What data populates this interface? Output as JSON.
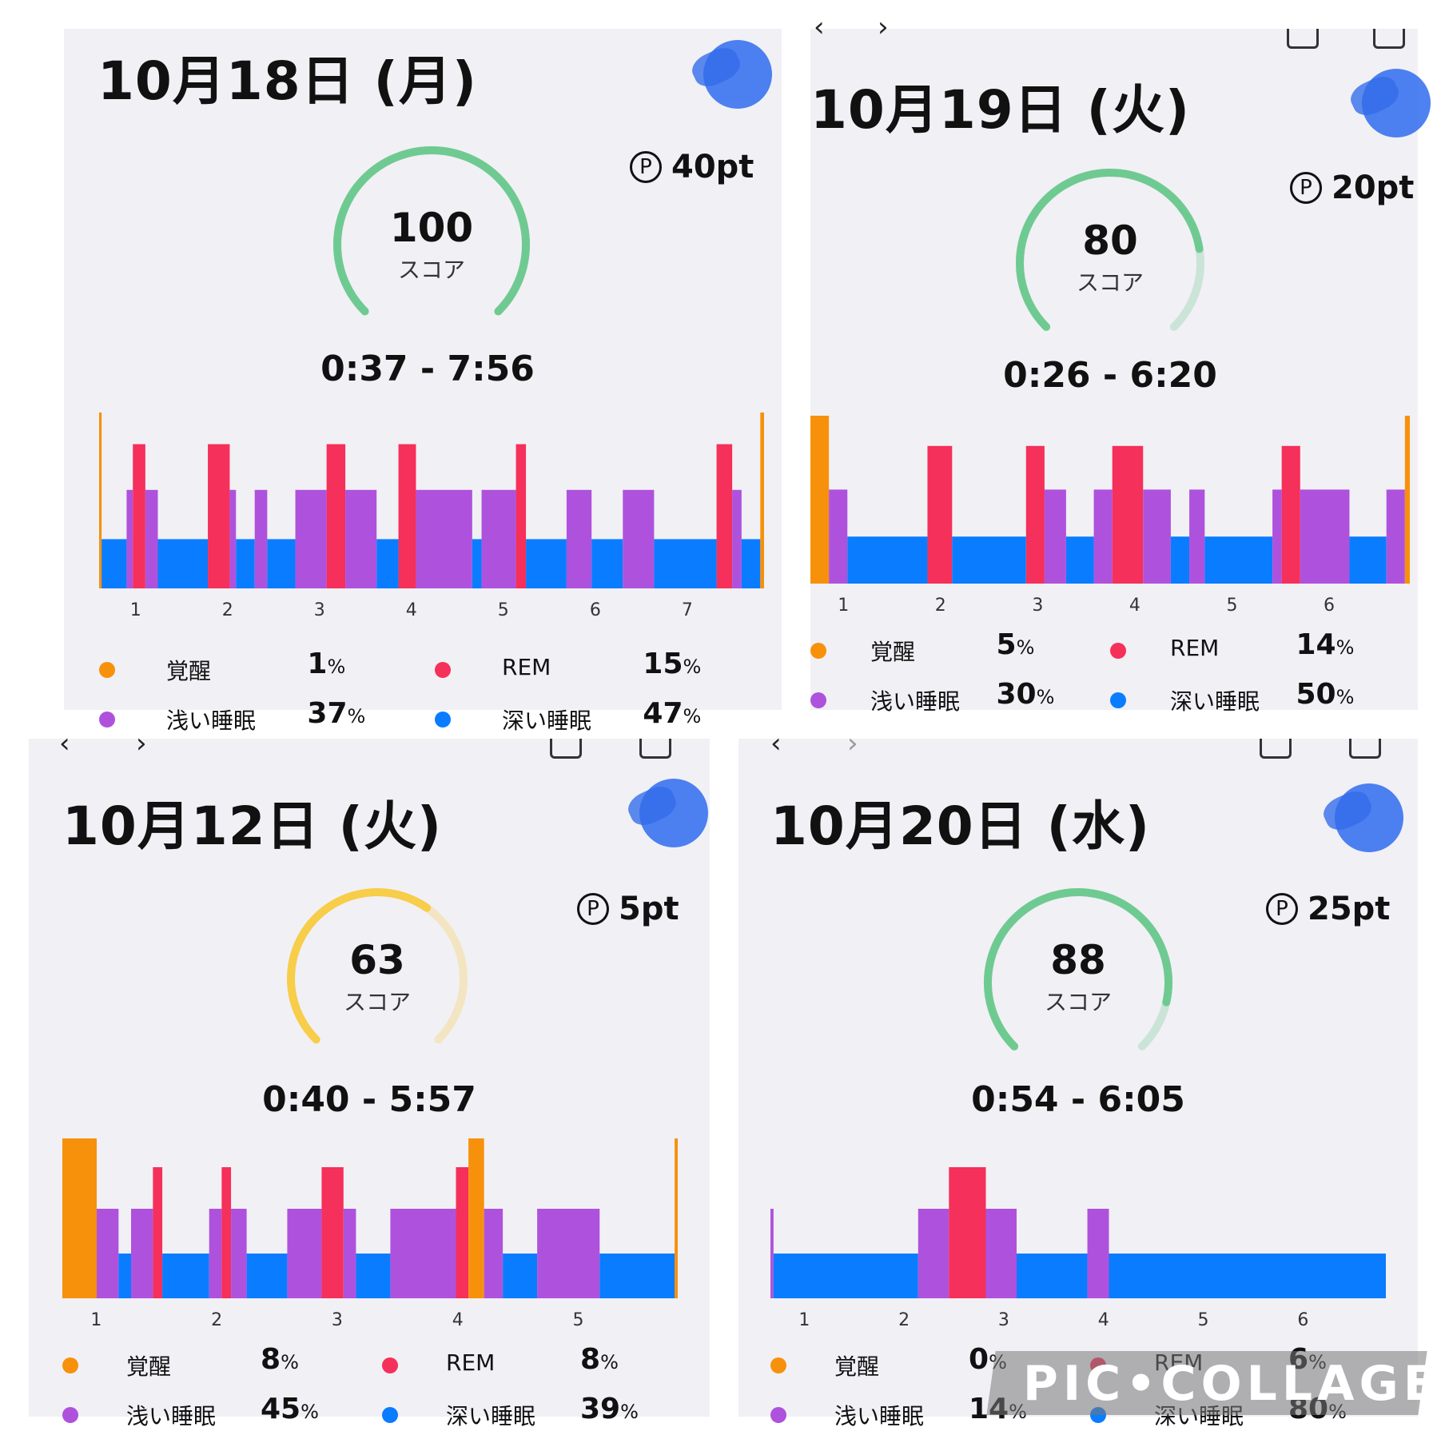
{
  "colors": {
    "awake": "#f7910c",
    "rem": "#f5305a",
    "light": "#ae52dd",
    "deep": "#0a7cff",
    "score_green": "#6fca92",
    "score_yellow": "#f7cd49"
  },
  "panels": [
    {
      "date": "10月18日 (月)",
      "points": "40pt",
      "score": "100",
      "score_label": "スコア",
      "gauge_color": "score_green",
      "score_fraction": 1.0,
      "time_range": "0:37 - 7:56",
      "hours": [
        "1",
        "2",
        "3",
        "4",
        "5",
        "6",
        "7"
      ],
      "legend": [
        {
          "name": "覚醒",
          "pct": "1",
          "color": "awake"
        },
        {
          "name": "REM",
          "pct": "15",
          "color": "rem"
        },
        {
          "name": "浅い睡眠",
          "pct": "37",
          "color": "light"
        },
        {
          "name": "深い睡眠",
          "pct": "47",
          "color": "deep"
        }
      ]
    },
    {
      "date": "10月19日 (火)",
      "points": "20pt",
      "score": "80",
      "score_label": "スコア",
      "gauge_color": "score_green",
      "score_fraction": 0.8,
      "time_range": "0:26 - 6:20",
      "hours": [
        "1",
        "2",
        "3",
        "4",
        "5",
        "6"
      ],
      "legend": [
        {
          "name": "覚醒",
          "pct": "5",
          "color": "awake"
        },
        {
          "name": "REM",
          "pct": "14",
          "color": "rem"
        },
        {
          "name": "浅い睡眠",
          "pct": "30",
          "color": "light"
        },
        {
          "name": "深い睡眠",
          "pct": "50",
          "color": "deep"
        }
      ]
    },
    {
      "date": "10月12日 (火)",
      "points": "5pt",
      "score": "63",
      "score_label": "スコア",
      "gauge_color": "score_yellow",
      "score_fraction": 0.63,
      "time_range": "0:40 - 5:57",
      "hours": [
        "1",
        "2",
        "3",
        "4",
        "5"
      ],
      "legend": [
        {
          "name": "覚醒",
          "pct": "8",
          "color": "awake"
        },
        {
          "name": "REM",
          "pct": "8",
          "color": "rem"
        },
        {
          "name": "浅い睡眠",
          "pct": "45",
          "color": "light"
        },
        {
          "name": "深い睡眠",
          "pct": "39",
          "color": "deep"
        }
      ]
    },
    {
      "date": "10月20日 (水)",
      "points": "25pt",
      "score": "88",
      "score_label": "スコア",
      "gauge_color": "score_green",
      "score_fraction": 0.88,
      "time_range": "0:54 - 6:05",
      "hours": [
        "1",
        "2",
        "3",
        "4",
        "5",
        "6"
      ],
      "legend": [
        {
          "name": "覚醒",
          "pct": "0",
          "color": "awake"
        },
        {
          "name": "REM",
          "pct": "6",
          "color": "rem"
        },
        {
          "name": "浅い睡眠",
          "pct": "14",
          "color": "light"
        },
        {
          "name": "深い睡眠",
          "pct": "80",
          "color": "deep"
        }
      ]
    }
  ],
  "pct_unit": "%",
  "points_icon": "P",
  "watermark": "PIC•COLLAGE"
}
